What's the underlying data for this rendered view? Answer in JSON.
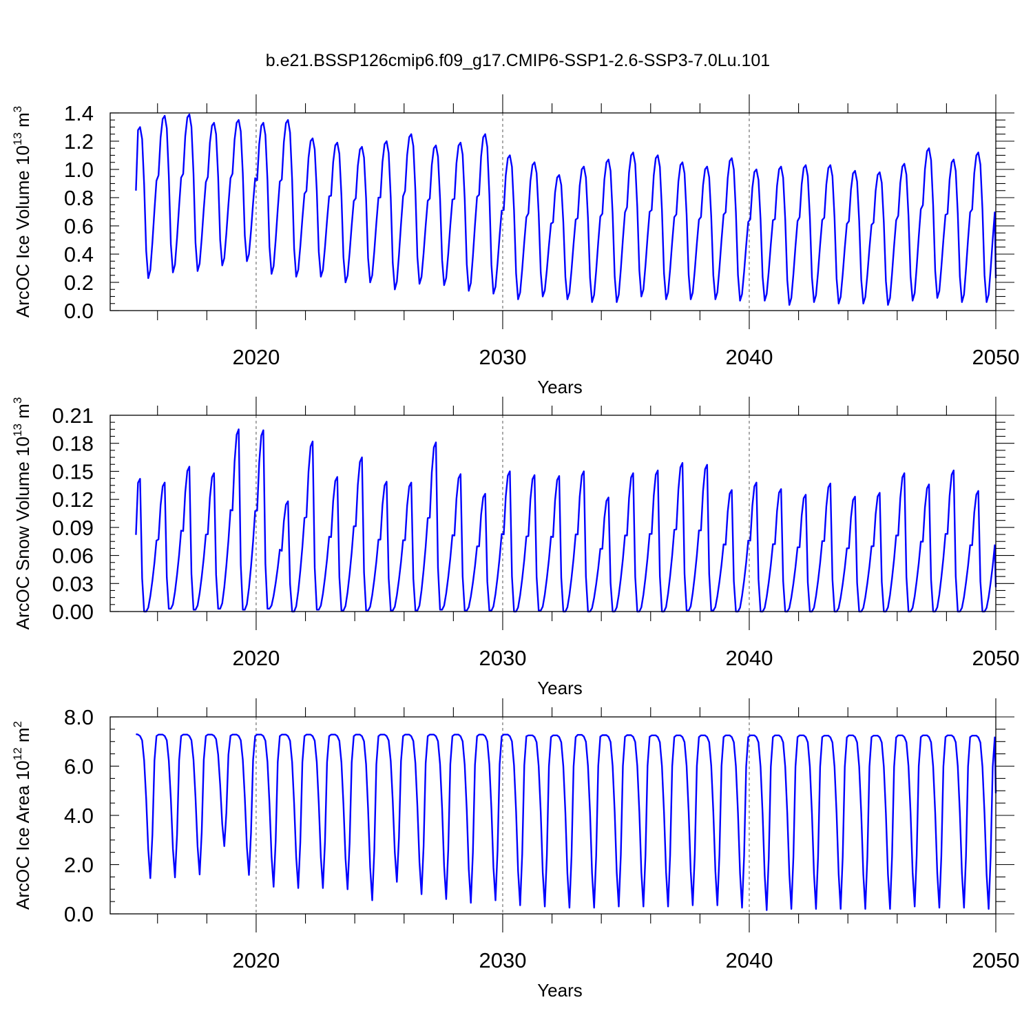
{
  "figure": {
    "title": "b.e21.BSSP126cmip6.f09_g17.CMIP6-SSP1-2.6-SSP3-7.0Lu.101",
    "line_color": "#0000ff"
  },
  "chart_data": [
    {
      "type": "line",
      "ylabel": "ArcOC Ice Volume 10",
      "ylabel_sup": "13",
      "ylabel_unit": "m",
      "ylabel_unit_sup": "3",
      "xlabel": "Years",
      "xlim": [
        2014.08,
        2050.0
      ],
      "ylim": [
        0.0,
        1.4
      ],
      "xticks": [
        2020,
        2030,
        2040,
        2050
      ],
      "yticks": [
        0.0,
        0.2,
        0.4,
        0.6,
        0.8,
        1.0,
        1.2,
        1.4
      ],
      "ytick_labels": [
        "0.0",
        "0.2",
        "0.4",
        "0.6",
        "0.8",
        "1.0",
        "1.2",
        "1.4"
      ],
      "grid": "dashed vertical lines at 2020, 2030, 2040",
      "seasonal_cycle": {
        "first_month": 1,
        "first_value": 0.85,
        "last_value": 0.23,
        "peak_month": 5,
        "years": [
          2015,
          2016,
          2017,
          2018,
          2019,
          2020,
          2021,
          2022,
          2023,
          2024,
          2025,
          2026,
          2027,
          2028,
          2029,
          2030,
          2031,
          2032,
          2033,
          2034,
          2035,
          2036,
          2037,
          2038,
          2039,
          2040,
          2041,
          2042,
          2043,
          2044,
          2045,
          2046,
          2047,
          2048,
          2049
        ],
        "annual_max": [
          1.3,
          1.38,
          1.39,
          1.33,
          1.35,
          1.33,
          1.35,
          1.22,
          1.19,
          1.16,
          1.2,
          1.25,
          1.17,
          1.19,
          1.25,
          1.1,
          1.05,
          0.96,
          1.02,
          1.07,
          1.12,
          1.1,
          1.05,
          1.02,
          1.08,
          1.0,
          1.02,
          1.03,
          1.03,
          0.99,
          0.98,
          1.04,
          1.15,
          1.07,
          1.12
        ],
        "annual_min": [
          0.23,
          0.27,
          0.28,
          0.32,
          0.35,
          0.26,
          0.24,
          0.24,
          0.2,
          0.2,
          0.15,
          0.19,
          0.18,
          0.14,
          0.12,
          0.08,
          0.1,
          0.08,
          0.06,
          0.06,
          0.1,
          0.08,
          0.08,
          0.08,
          0.07,
          0.07,
          0.04,
          0.06,
          0.05,
          0.05,
          0.04,
          0.07,
          0.09,
          0.06,
          0.06
        ]
      }
    },
    {
      "type": "line",
      "ylabel": "ArcOC Snow Volume 10",
      "ylabel_sup": "13",
      "ylabel_unit": "m",
      "ylabel_unit_sup": "3",
      "xlabel": "Years",
      "xlim": [
        2014.08,
        2050.0
      ],
      "ylim": [
        0.0,
        0.21
      ],
      "xticks": [
        2020,
        2030,
        2040,
        2050
      ],
      "yticks": [
        0.0,
        0.03,
        0.06,
        0.09,
        0.12,
        0.15,
        0.18,
        0.21
      ],
      "ytick_labels": [
        "0.00",
        "0.03",
        "0.06",
        "0.09",
        "0.12",
        "0.15",
        "0.18",
        "0.21"
      ],
      "grid": "dashed vertical lines at 2020, 2030, 2040",
      "seasonal_cycle": {
        "first_month": 1,
        "first_value": 0.082,
        "last_value": 0.026,
        "peak_month": 4,
        "years": [
          2015,
          2016,
          2017,
          2018,
          2019,
          2020,
          2021,
          2022,
          2023,
          2024,
          2025,
          2026,
          2027,
          2028,
          2029,
          2030,
          2031,
          2032,
          2033,
          2034,
          2035,
          2036,
          2037,
          2038,
          2039,
          2040,
          2041,
          2042,
          2043,
          2044,
          2045,
          2046,
          2047,
          2048,
          2049
        ],
        "annual_max": [
          0.142,
          0.138,
          0.155,
          0.148,
          0.195,
          0.194,
          0.118,
          0.182,
          0.144,
          0.165,
          0.139,
          0.138,
          0.181,
          0.147,
          0.126,
          0.15,
          0.146,
          0.145,
          0.15,
          0.122,
          0.148,
          0.151,
          0.159,
          0.157,
          0.13,
          0.138,
          0.131,
          0.125,
          0.137,
          0.123,
          0.127,
          0.148,
          0.136,
          0.151,
          0.129
        ],
        "annual_min": [
          0.0,
          0.003,
          0.002,
          0.003,
          0.002,
          0.003,
          0.0,
          0.002,
          0.001,
          0.001,
          0.001,
          0.001,
          0.002,
          0.001,
          0.001,
          0.0,
          0.001,
          0.0,
          0.0,
          0.0,
          0.0,
          0.0,
          0.001,
          0.001,
          0.0,
          0.0,
          0.0,
          0.0,
          0.0,
          0.0,
          0.0,
          0.0,
          0.0,
          0.0,
          0.0
        ]
      }
    },
    {
      "type": "line",
      "ylabel": "ArcOC Ice Area 10",
      "ylabel_sup": "12",
      "ylabel_unit": "m",
      "ylabel_unit_sup": "2",
      "xlabel": "Years",
      "xlim": [
        2014.08,
        2050.0
      ],
      "ylim": [
        0.0,
        8.0
      ],
      "xticks": [
        2020,
        2030,
        2040,
        2050
      ],
      "yticks": [
        0.0,
        2.0,
        4.0,
        6.0,
        8.0
      ],
      "ytick_labels": [
        "0.0",
        "2.0",
        "4.0",
        "6.0",
        "8.0"
      ],
      "grid": "dashed vertical lines at 2020, 2030, 2040",
      "seasonal_cycle": {
        "first_month": 1,
        "first_value": 7.3,
        "last_value": 4.9,
        "plateau_months": [
          1,
          5
        ],
        "years": [
          2015,
          2016,
          2017,
          2018,
          2019,
          2020,
          2021,
          2022,
          2023,
          2024,
          2025,
          2026,
          2027,
          2028,
          2029,
          2030,
          2031,
          2032,
          2033,
          2034,
          2035,
          2036,
          2037,
          2038,
          2039,
          2040,
          2041,
          2042,
          2043,
          2044,
          2045,
          2046,
          2047,
          2048,
          2049
        ],
        "annual_max": [
          7.28,
          7.28,
          7.28,
          7.28,
          7.28,
          7.28,
          7.28,
          7.28,
          7.28,
          7.28,
          7.28,
          7.28,
          7.28,
          7.28,
          7.28,
          7.28,
          7.25,
          7.25,
          7.27,
          7.26,
          7.26,
          7.25,
          7.25,
          7.25,
          7.25,
          7.25,
          7.25,
          7.25,
          7.24,
          7.25,
          7.24,
          7.25,
          7.25,
          7.25,
          7.24
        ],
        "annual_min": [
          1.45,
          1.48,
          1.6,
          2.75,
          1.58,
          1.1,
          1.05,
          1.05,
          1.0,
          0.55,
          1.3,
          0.8,
          0.6,
          0.45,
          0.55,
          0.35,
          0.3,
          0.25,
          0.25,
          0.3,
          0.3,
          0.3,
          0.35,
          0.35,
          0.25,
          0.15,
          0.2,
          0.2,
          0.2,
          0.2,
          0.2,
          0.3,
          0.25,
          0.25,
          0.2
        ]
      }
    }
  ]
}
